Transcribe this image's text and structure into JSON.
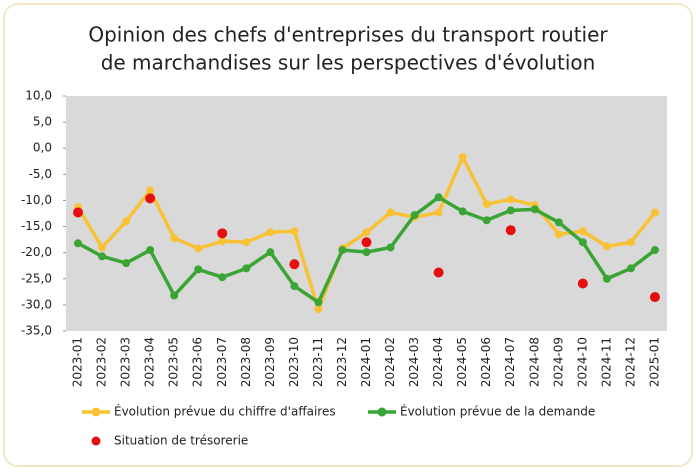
{
  "chart_data": {
    "type": "line",
    "title": [
      "Opinion des chefs d'entreprises du transport routier",
      "de marchandises sur les perspectives d'évolution"
    ],
    "categories": [
      "2023-01",
      "2023-02",
      "2023-03",
      "2023-04",
      "2023-05",
      "2023-06",
      "2023-07",
      "2023-08",
      "2023-09",
      "2023-10",
      "2023-11",
      "2023-12",
      "2024-01",
      "2024-02",
      "2024-03",
      "2024-04",
      "2024-05",
      "2024-06",
      "2024-07",
      "2024-08",
      "2024-09",
      "2024-10",
      "2024-11",
      "2024-12",
      "2025-01"
    ],
    "series": [
      {
        "name": "Évolution prévue du chiffre d'affaires",
        "color": "#f9c234",
        "style": "line",
        "values": [
          -11.3,
          -19.0,
          -14.0,
          -8.1,
          -17.2,
          -19.2,
          -17.8,
          -18.0,
          -16.1,
          -15.9,
          -30.8,
          -19.2,
          -16.1,
          -12.3,
          -13.2,
          -12.3,
          -1.7,
          -10.7,
          -9.8,
          -10.9,
          -16.5,
          -15.9,
          -18.8,
          -18.0,
          -12.3
        ]
      },
      {
        "name": "Évolution prévue de la demande",
        "color": "#3aa535",
        "style": "line",
        "values": [
          -18.2,
          -20.7,
          -22.0,
          -19.5,
          -28.2,
          -23.2,
          -24.7,
          -23.0,
          -19.9,
          -26.4,
          -29.5,
          -19.5,
          -19.9,
          -19.0,
          -12.8,
          -9.4,
          -12.1,
          -13.8,
          -11.9,
          -11.7,
          -14.2,
          -18.0,
          -25.0,
          -23.0,
          -19.5
        ]
      },
      {
        "name": "Situation de trésorerie",
        "color": "#e3100f",
        "style": "points",
        "values": [
          -12.3,
          null,
          null,
          -9.6,
          null,
          null,
          -16.3,
          null,
          null,
          -22.2,
          null,
          null,
          -18.0,
          null,
          null,
          -23.8,
          null,
          null,
          -15.7,
          null,
          null,
          -25.9,
          null,
          null,
          -28.5
        ]
      }
    ],
    "ylim": [
      -35,
      10
    ],
    "yticks": [
      {
        "value": -35,
        "label": "-35,0"
      },
      {
        "value": -30,
        "label": "-30,0"
      },
      {
        "value": -25,
        "label": "-25,0"
      },
      {
        "value": -20,
        "label": "-20,0"
      },
      {
        "value": -15,
        "label": "-15,0"
      },
      {
        "value": -10,
        "label": "-10,0"
      },
      {
        "value": -5,
        "label": "-5,0"
      },
      {
        "value": 0,
        "label": "0,0"
      },
      {
        "value": 5,
        "label": "5,0"
      },
      {
        "value": 10,
        "label": "10,0"
      }
    ],
    "grid": false
  }
}
